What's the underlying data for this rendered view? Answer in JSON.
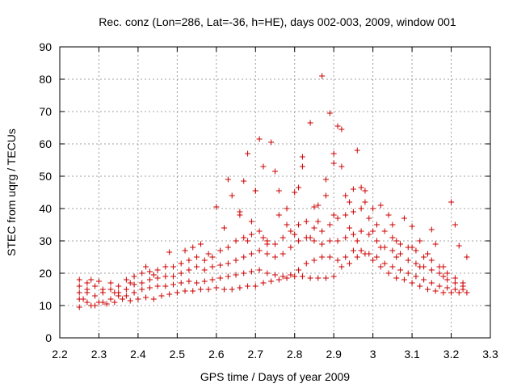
{
  "chart_data": {
    "type": "scatter",
    "title": "Rec. conz (Lon=286, Lat=-36, h=HE), days 002-003, 2009, window 001",
    "xlabel": "GPS time / Days of year 2009",
    "ylabel": "STEC from uqrg / TECUs",
    "xlim": [
      2.2,
      3.3
    ],
    "ylim": [
      0,
      90
    ],
    "x_ticks": [
      "2.2",
      "2.3",
      "2.4",
      "2.5",
      "2.6",
      "2.7",
      "2.8",
      "2.9",
      "3",
      "3.1",
      "3.2",
      "3.3"
    ],
    "y_ticks": [
      "0",
      "10",
      "20",
      "30",
      "40",
      "50",
      "60",
      "70",
      "80",
      "90"
    ],
    "grid": true,
    "marker": "+",
    "color": "#cc0000",
    "series": [
      {
        "points": [
          [
            2.25,
            9.5
          ],
          [
            2.26,
            12
          ],
          [
            2.27,
            14
          ],
          [
            2.28,
            10
          ],
          [
            2.3,
            11
          ],
          [
            2.32,
            10.5
          ],
          [
            2.34,
            11
          ],
          [
            2.36,
            12
          ],
          [
            2.38,
            11.5
          ],
          [
            2.4,
            12
          ],
          [
            2.42,
            12.5
          ],
          [
            2.44,
            12
          ],
          [
            2.46,
            13
          ],
          [
            2.48,
            13.5
          ],
          [
            2.5,
            14
          ],
          [
            2.52,
            14.5
          ],
          [
            2.54,
            14.5
          ],
          [
            2.56,
            15
          ],
          [
            2.58,
            15
          ],
          [
            2.6,
            15.5
          ],
          [
            2.62,
            15
          ],
          [
            2.64,
            15
          ],
          [
            2.66,
            15.5
          ],
          [
            2.68,
            16
          ],
          [
            2.7,
            16
          ],
          [
            2.72,
            17
          ],
          [
            2.74,
            17.5
          ],
          [
            2.76,
            18
          ],
          [
            2.78,
            18.5
          ],
          [
            2.8,
            19
          ],
          [
            2.82,
            19
          ],
          [
            2.84,
            18.5
          ],
          [
            2.86,
            18.5
          ],
          [
            2.88,
            18.5
          ],
          [
            2.9,
            19
          ],
          [
            2.92,
            22
          ],
          [
            2.94,
            23
          ],
          [
            2.96,
            25
          ],
          [
            2.98,
            26
          ],
          [
            3.0,
            24
          ],
          [
            3.02,
            22
          ],
          [
            3.04,
            20
          ],
          [
            3.06,
            18.5
          ],
          [
            3.08,
            18
          ],
          [
            3.1,
            17
          ],
          [
            3.12,
            16
          ],
          [
            3.14,
            15
          ],
          [
            3.16,
            14.5
          ],
          [
            3.18,
            14
          ],
          [
            3.2,
            14
          ],
          [
            3.22,
            14
          ],
          [
            3.24,
            14
          ],
          [
            2.25,
            12
          ],
          [
            2.27,
            11
          ],
          [
            2.29,
            10
          ],
          [
            2.31,
            11
          ],
          [
            2.33,
            12
          ],
          [
            2.35,
            13
          ],
          [
            2.37,
            13
          ],
          [
            2.39,
            14
          ],
          [
            2.41,
            15
          ],
          [
            2.43,
            15.5
          ],
          [
            2.45,
            16
          ],
          [
            2.47,
            16
          ],
          [
            2.49,
            16.5
          ],
          [
            2.51,
            17
          ],
          [
            2.53,
            17.5
          ],
          [
            2.55,
            17
          ],
          [
            2.57,
            17.5
          ],
          [
            2.59,
            18
          ],
          [
            2.61,
            18.5
          ],
          [
            2.63,
            19
          ],
          [
            2.65,
            19.5
          ],
          [
            2.67,
            20
          ],
          [
            2.69,
            20.5
          ],
          [
            2.71,
            21
          ],
          [
            2.73,
            20
          ],
          [
            2.75,
            19.5
          ],
          [
            2.77,
            19
          ],
          [
            2.79,
            19.5
          ],
          [
            2.81,
            21
          ],
          [
            2.83,
            23
          ],
          [
            2.85,
            24
          ],
          [
            2.87,
            25
          ],
          [
            2.89,
            25
          ],
          [
            2.91,
            24
          ],
          [
            2.93,
            25
          ],
          [
            2.95,
            27
          ],
          [
            2.97,
            27
          ],
          [
            2.99,
            26
          ],
          [
            3.01,
            25
          ],
          [
            3.03,
            23
          ],
          [
            3.05,
            22
          ],
          [
            3.07,
            21
          ],
          [
            3.09,
            20
          ],
          [
            3.11,
            19
          ],
          [
            3.13,
            18
          ],
          [
            3.15,
            17
          ],
          [
            3.17,
            16
          ],
          [
            3.19,
            15.5
          ],
          [
            3.21,
            15
          ],
          [
            3.23,
            15
          ],
          [
            2.25,
            14
          ],
          [
            2.27,
            15
          ],
          [
            2.29,
            13
          ],
          [
            2.31,
            14
          ],
          [
            2.33,
            15
          ],
          [
            2.35,
            14
          ],
          [
            2.37,
            15
          ],
          [
            2.39,
            16.5
          ],
          [
            2.41,
            17
          ],
          [
            2.43,
            18
          ],
          [
            2.45,
            18.5
          ],
          [
            2.47,
            19
          ],
          [
            2.49,
            19
          ],
          [
            2.51,
            20
          ],
          [
            2.53,
            21
          ],
          [
            2.55,
            22
          ],
          [
            2.57,
            21
          ],
          [
            2.59,
            22
          ],
          [
            2.61,
            22.5
          ],
          [
            2.63,
            23
          ],
          [
            2.65,
            24
          ],
          [
            2.67,
            25
          ],
          [
            2.69,
            26
          ],
          [
            2.71,
            27
          ],
          [
            2.73,
            26
          ],
          [
            2.75,
            25
          ],
          [
            2.77,
            26
          ],
          [
            2.79,
            28
          ],
          [
            2.81,
            30
          ],
          [
            2.83,
            31
          ],
          [
            2.85,
            30
          ],
          [
            2.87,
            29
          ],
          [
            2.89,
            30
          ],
          [
            2.91,
            30
          ],
          [
            2.93,
            31
          ],
          [
            2.95,
            32
          ],
          [
            2.97,
            33
          ],
          [
            2.99,
            32
          ],
          [
            3.01,
            30
          ],
          [
            3.03,
            28
          ],
          [
            3.05,
            27
          ],
          [
            3.07,
            26
          ],
          [
            3.09,
            24
          ],
          [
            3.11,
            23
          ],
          [
            3.13,
            22
          ],
          [
            3.15,
            21
          ],
          [
            3.17,
            20
          ],
          [
            3.19,
            18
          ],
          [
            3.21,
            17
          ],
          [
            3.23,
            16
          ],
          [
            2.25,
            16
          ],
          [
            2.27,
            17
          ],
          [
            2.29,
            16
          ],
          [
            2.31,
            15
          ],
          [
            2.33,
            17
          ],
          [
            2.35,
            16
          ],
          [
            2.37,
            18
          ],
          [
            2.39,
            19
          ],
          [
            2.41,
            20
          ],
          [
            2.43,
            20.5
          ],
          [
            2.45,
            21
          ],
          [
            2.47,
            22
          ],
          [
            2.49,
            22
          ],
          [
            2.51,
            23
          ],
          [
            2.53,
            24
          ],
          [
            2.55,
            25
          ],
          [
            2.57,
            24
          ],
          [
            2.59,
            25
          ],
          [
            2.61,
            27
          ],
          [
            2.63,
            28
          ],
          [
            2.65,
            30
          ],
          [
            2.67,
            31
          ],
          [
            2.69,
            32
          ],
          [
            2.71,
            33
          ],
          [
            2.73,
            30
          ],
          [
            2.75,
            29
          ],
          [
            2.77,
            31
          ],
          [
            2.79,
            33
          ],
          [
            2.81,
            35
          ],
          [
            2.83,
            36
          ],
          [
            2.85,
            34
          ],
          [
            2.87,
            33
          ],
          [
            2.89,
            35
          ],
          [
            2.91,
            37
          ],
          [
            2.93,
            38
          ],
          [
            2.95,
            39
          ],
          [
            2.97,
            40
          ],
          [
            2.99,
            37
          ],
          [
            3.01,
            35
          ],
          [
            3.03,
            33
          ],
          [
            3.05,
            31
          ],
          [
            3.07,
            29
          ],
          [
            3.09,
            28
          ],
          [
            3.11,
            27
          ],
          [
            3.13,
            25
          ],
          [
            3.15,
            24
          ],
          [
            3.17,
            22
          ],
          [
            3.19,
            20
          ],
          [
            3.21,
            18.5
          ],
          [
            3.23,
            17
          ],
          [
            2.25,
            18
          ],
          [
            2.28,
            18
          ],
          [
            2.3,
            17.5
          ],
          [
            2.34,
            14
          ],
          [
            2.38,
            17
          ],
          [
            2.42,
            22
          ],
          [
            2.44,
            19.5
          ],
          [
            2.48,
            26.5
          ],
          [
            2.52,
            27
          ],
          [
            2.54,
            28
          ],
          [
            2.56,
            29
          ],
          [
            2.58,
            26
          ],
          [
            2.62,
            34
          ],
          [
            2.64,
            44
          ],
          [
            2.66,
            39
          ],
          [
            2.68,
            57
          ],
          [
            2.7,
            45.5
          ],
          [
            2.72,
            53
          ],
          [
            2.74,
            60.5
          ],
          [
            2.76,
            45.5
          ],
          [
            2.78,
            40
          ],
          [
            2.8,
            45
          ],
          [
            2.82,
            53
          ],
          [
            2.84,
            66.5
          ],
          [
            2.86,
            41
          ],
          [
            2.88,
            44
          ],
          [
            2.9,
            54
          ],
          [
            2.92,
            53
          ],
          [
            2.94,
            42
          ],
          [
            2.96,
            58
          ],
          [
            2.98,
            42
          ],
          [
            3.0,
            40
          ],
          [
            3.02,
            41
          ],
          [
            3.04,
            38
          ],
          [
            3.06,
            30
          ],
          [
            3.08,
            37
          ],
          [
            3.1,
            28
          ],
          [
            3.12,
            30
          ],
          [
            3.14,
            26
          ],
          [
            3.16,
            29
          ],
          [
            3.18,
            22
          ],
          [
            3.2,
            42
          ],
          [
            3.22,
            28.5
          ],
          [
            3.24,
            25
          ],
          [
            2.6,
            40.5
          ],
          [
            2.63,
            49
          ],
          [
            2.67,
            48.5
          ],
          [
            2.69,
            36
          ],
          [
            2.71,
            61.5
          ],
          [
            2.73,
            29
          ],
          [
            2.75,
            51.5
          ],
          [
            2.78,
            35
          ],
          [
            2.81,
            46.5
          ],
          [
            2.82,
            56
          ],
          [
            2.85,
            40.5
          ],
          [
            2.87,
            81
          ],
          [
            2.88,
            49
          ],
          [
            2.89,
            69.5
          ],
          [
            2.9,
            57
          ],
          [
            2.91,
            65.5
          ],
          [
            2.92,
            64.5
          ],
          [
            2.93,
            44
          ],
          [
            2.95,
            46
          ],
          [
            2.97,
            46.5
          ],
          [
            2.98,
            45.5
          ],
          [
            3.0,
            33
          ],
          [
            3.05,
            35
          ],
          [
            3.1,
            34.5
          ],
          [
            3.15,
            33.5
          ],
          [
            3.21,
            35
          ],
          [
            2.66,
            38
          ],
          [
            2.68,
            30
          ],
          [
            2.7,
            45.5
          ],
          [
            2.72,
            31
          ],
          [
            2.76,
            38
          ],
          [
            2.8,
            32
          ],
          [
            2.84,
            31
          ],
          [
            2.86,
            36
          ],
          [
            2.9,
            38
          ],
          [
            2.94,
            34
          ],
          [
            2.96,
            30
          ],
          [
            3.02,
            28
          ],
          [
            3.06,
            25
          ],
          [
            3.12,
            22
          ],
          [
            3.18,
            19
          ]
        ]
      }
    ]
  }
}
